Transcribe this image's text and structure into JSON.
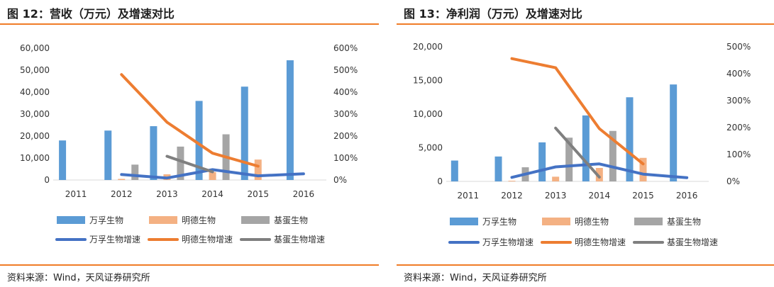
{
  "source_label": "资料来源：Wind，天风证券研究所",
  "chart_data": [
    {
      "type": "bar",
      "title": "图 12：营收（万元）及增速对比",
      "categories": [
        "2011",
        "2012",
        "2013",
        "2014",
        "2015",
        "2016"
      ],
      "y_ticks": [
        "0",
        "10,000",
        "20,000",
        "30,000",
        "40,000",
        "50,000",
        "60,000"
      ],
      "y_ticks_right": [
        "0%",
        "100%",
        "200%",
        "300%",
        "400%",
        "500%",
        "600%"
      ],
      "ylim": [
        0,
        60000
      ],
      "ylim_right": [
        0,
        6
      ],
      "series": [
        {
          "name": "万孚生物",
          "type": "bar",
          "color": "#5b9bd5",
          "values": [
            18000,
            22500,
            24500,
            36000,
            42500,
            54500
          ]
        },
        {
          "name": "明德生物",
          "type": "bar",
          "color": "#f4b183",
          "values": [
            null,
            500,
            2600,
            3600,
            9300,
            null
          ]
        },
        {
          "name": "基蛋生物",
          "type": "bar",
          "color": "#a5a5a5",
          "values": [
            null,
            7000,
            15200,
            20800,
            null,
            null
          ]
        },
        {
          "name": "万孚生物增速",
          "type": "line",
          "axis": "right",
          "color": "#4472c4",
          "values": [
            null,
            0.25,
            0.09,
            0.47,
            0.19,
            0.28
          ]
        },
        {
          "name": "明德生物增速",
          "type": "line",
          "axis": "right",
          "color": "#ed7d31",
          "values": [
            null,
            4.8,
            2.63,
            1.22,
            0.63,
            null
          ]
        },
        {
          "name": "基蛋生物增速",
          "type": "line",
          "axis": "right",
          "color": "#7f7f7f",
          "values": [
            null,
            null,
            1.08,
            0.37,
            null,
            null
          ]
        }
      ]
    },
    {
      "type": "bar",
      "title": "图 13：净利润（万元）及增速对比",
      "categories": [
        "2011",
        "2012",
        "2013",
        "2014",
        "2015",
        "2016"
      ],
      "y_ticks": [
        "0",
        "5,000",
        "10,000",
        "15,000",
        "20,000"
      ],
      "y_ticks_right": [
        "0%",
        "100%",
        "200%",
        "300%",
        "400%",
        "500%"
      ],
      "ylim": [
        0,
        20000
      ],
      "ylim_right": [
        0,
        5
      ],
      "series": [
        {
          "name": "万孚生物",
          "type": "bar",
          "color": "#5b9bd5",
          "values": [
            3100,
            3700,
            5800,
            9800,
            12500,
            14400
          ]
        },
        {
          "name": "明德生物",
          "type": "bar",
          "color": "#f4b183",
          "values": [
            null,
            100,
            700,
            2000,
            3500,
            null
          ]
        },
        {
          "name": "基蛋生物",
          "type": "bar",
          "color": "#a5a5a5",
          "values": [
            null,
            2100,
            6500,
            7500,
            null,
            null
          ]
        },
        {
          "name": "万孚生物增速",
          "type": "line",
          "axis": "right",
          "color": "#4472c4",
          "values": [
            null,
            0.15,
            0.54,
            0.65,
            0.27,
            0.14
          ]
        },
        {
          "name": "明德生物增速",
          "type": "line",
          "axis": "right",
          "color": "#ed7d31",
          "values": [
            null,
            4.56,
            4.22,
            1.96,
            0.65,
            null
          ]
        },
        {
          "name": "基蛋生物增速",
          "type": "line",
          "axis": "right",
          "color": "#7f7f7f",
          "values": [
            null,
            null,
            1.98,
            0.16,
            null,
            null
          ]
        }
      ]
    }
  ]
}
